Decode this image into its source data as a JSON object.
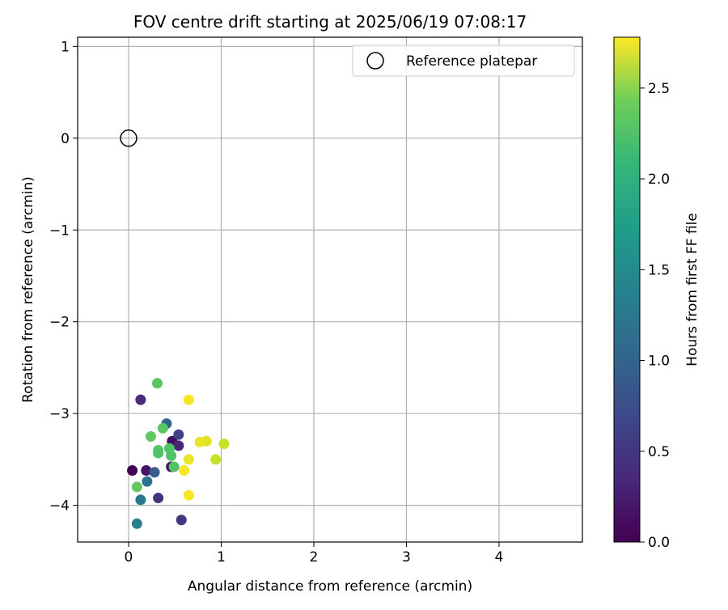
{
  "chart_data": {
    "type": "scatter",
    "title": "FOV centre drift starting at 2025/06/19 07:08:17",
    "xlabel": "Angular distance from reference (arcmin)",
    "ylabel": "Rotation from reference (arcmin)",
    "xlim": [
      -0.55,
      4.9
    ],
    "ylim": [
      -4.4,
      1.1
    ],
    "x_ticks": [
      0,
      1,
      2,
      3,
      4
    ],
    "y_ticks": [
      1,
      0,
      -1,
      -2,
      -3,
      -4
    ],
    "grid": true,
    "legend": {
      "placement": "top-right",
      "entries": [
        "Reference platepar"
      ]
    },
    "reference": {
      "x": 0,
      "y": 0,
      "label": "Reference platepar"
    },
    "colorbar": {
      "label": "Hours from first FF file",
      "min": 0.0,
      "max": 2.78,
      "ticks": [
        0.0,
        0.5,
        1.0,
        1.5,
        2.0,
        2.5
      ],
      "colormap": "viridis"
    },
    "points": [
      {
        "x": 0.04,
        "y": -3.62,
        "c": 0.0
      },
      {
        "x": 0.19,
        "y": -3.62,
        "c": 0.15
      },
      {
        "x": 0.46,
        "y": -3.58,
        "c": 0.1
      },
      {
        "x": 0.47,
        "y": -3.3,
        "c": 0.12
      },
      {
        "x": 0.54,
        "y": -3.35,
        "c": 0.3
      },
      {
        "x": 0.13,
        "y": -2.85,
        "c": 0.35
      },
      {
        "x": 0.32,
        "y": -3.92,
        "c": 0.4
      },
      {
        "x": 0.57,
        "y": -4.16,
        "c": 0.45
      },
      {
        "x": 0.54,
        "y": -3.23,
        "c": 0.55
      },
      {
        "x": 0.28,
        "y": -3.64,
        "c": 0.8
      },
      {
        "x": 0.41,
        "y": -3.11,
        "c": 0.9
      },
      {
        "x": 0.2,
        "y": -3.74,
        "c": 1.05
      },
      {
        "x": 0.13,
        "y": -3.94,
        "c": 1.1
      },
      {
        "x": 0.09,
        "y": -4.2,
        "c": 1.2
      },
      {
        "x": 0.31,
        "y": -2.67,
        "c": 2.05
      },
      {
        "x": 0.37,
        "y": -3.16,
        "c": 2.05
      },
      {
        "x": 0.24,
        "y": -3.25,
        "c": 2.1
      },
      {
        "x": 0.32,
        "y": -3.4,
        "c": 2.05
      },
      {
        "x": 0.44,
        "y": -3.38,
        "c": 2.0
      },
      {
        "x": 0.46,
        "y": -3.46,
        "c": 2.0
      },
      {
        "x": 0.49,
        "y": -3.58,
        "c": 2.0
      },
      {
        "x": 0.09,
        "y": -3.8,
        "c": 2.1
      },
      {
        "x": 0.32,
        "y": -3.43,
        "c": 2.0
      },
      {
        "x": 0.94,
        "y": -3.5,
        "c": 2.55
      },
      {
        "x": 1.03,
        "y": -3.33,
        "c": 2.55
      },
      {
        "x": 0.84,
        "y": -3.3,
        "c": 2.65
      },
      {
        "x": 0.77,
        "y": -3.31,
        "c": 2.7
      },
      {
        "x": 0.65,
        "y": -3.5,
        "c": 2.7
      },
      {
        "x": 0.6,
        "y": -3.62,
        "c": 2.75
      },
      {
        "x": 0.65,
        "y": -3.89,
        "c": 2.75
      },
      {
        "x": 0.65,
        "y": -2.85,
        "c": 2.75
      }
    ]
  }
}
